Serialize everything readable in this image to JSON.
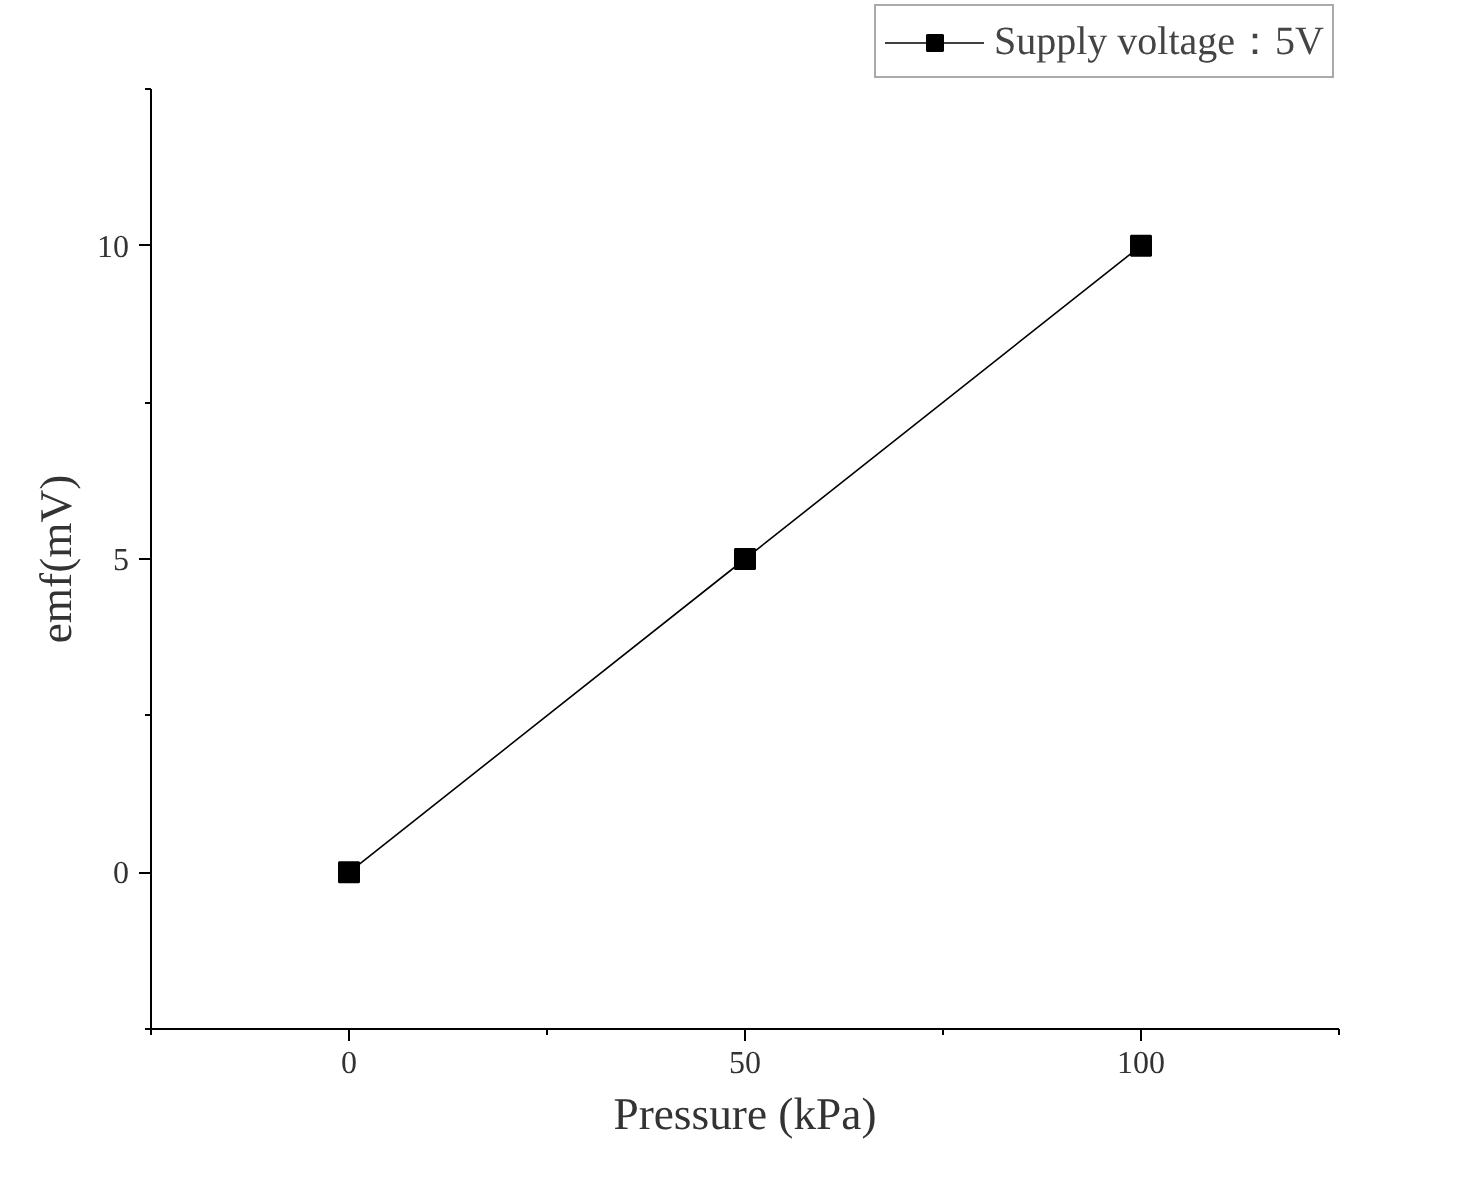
{
  "chart_data": {
    "type": "line",
    "xlabel": "Pressure (kPa)",
    "ylabel": "emf(mV)",
    "x": [
      0,
      50,
      100
    ],
    "series": [
      {
        "name": "Supply voltage：5V",
        "color": "#000000",
        "values": [
          0,
          5,
          10
        ]
      }
    ],
    "xlim": [
      -25,
      125
    ],
    "ylim": [
      -2.5,
      12.5
    ],
    "xticks": [
      0,
      50,
      100
    ],
    "yticks": [
      0,
      5,
      10
    ],
    "grid": false,
    "legend": "top right",
    "marker": "square",
    "line_style": "solid"
  }
}
